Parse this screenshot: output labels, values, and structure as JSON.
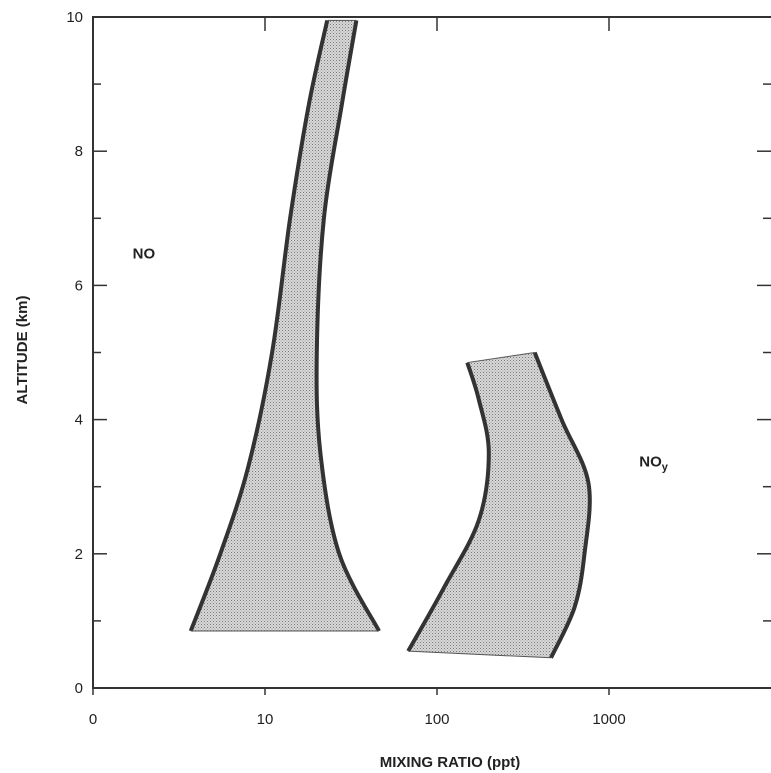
{
  "chart_data": {
    "type": "area",
    "xlabel": "MIXING RATIO (ppt)",
    "ylabel": "ALTITUDE (km)",
    "x_scale": "log",
    "x_ticks": [
      {
        "value": 1,
        "label": "0"
      },
      {
        "value": 10,
        "label": "10"
      },
      {
        "value": 100,
        "label": "100"
      },
      {
        "value": 1000,
        "label": "1000"
      }
    ],
    "y_ticks": [
      0,
      2,
      4,
      6,
      8,
      10
    ],
    "xlim": [
      1,
      10000
    ],
    "ylim": [
      0,
      10
    ],
    "grid": false,
    "fill_color": "#c8c8c8",
    "line_color": "#333333",
    "series": [
      {
        "name": "NO",
        "label": "NO",
        "label_position": {
          "x": 1.7,
          "y": 6.4
        },
        "left_boundary": [
          {
            "x": 3.7,
            "y": 0.85
          },
          {
            "x": 5.5,
            "y": 2.0
          },
          {
            "x": 8.0,
            "y": 3.3
          },
          {
            "x": 11.0,
            "y": 5.0
          },
          {
            "x": 14.0,
            "y": 7.0
          },
          {
            "x": 18.0,
            "y": 8.7
          },
          {
            "x": 23.0,
            "y": 9.95
          }
        ],
        "right_boundary": [
          {
            "x": 34.0,
            "y": 9.95
          },
          {
            "x": 28.0,
            "y": 8.7
          },
          {
            "x": 22.0,
            "y": 7.0
          },
          {
            "x": 20.0,
            "y": 5.0
          },
          {
            "x": 21.0,
            "y": 3.5
          },
          {
            "x": 27.0,
            "y": 2.0
          },
          {
            "x": 46.0,
            "y": 0.85
          }
        ]
      },
      {
        "name": "NOy",
        "label_main": "NO",
        "label_sub": "y",
        "label_position": {
          "x": 1500,
          "y": 3.3
        },
        "left_boundary": [
          {
            "x": 68,
            "y": 0.55
          },
          {
            "x": 110,
            "y": 1.5
          },
          {
            "x": 175,
            "y": 2.5
          },
          {
            "x": 200,
            "y": 3.5
          },
          {
            "x": 175,
            "y": 4.3
          },
          {
            "x": 150,
            "y": 4.85
          }
        ],
        "right_boundary": [
          {
            "x": 370,
            "y": 5.0
          },
          {
            "x": 530,
            "y": 4.0
          },
          {
            "x": 760,
            "y": 3.05
          },
          {
            "x": 720,
            "y": 2.0
          },
          {
            "x": 630,
            "y": 1.2
          },
          {
            "x": 460,
            "y": 0.45
          }
        ]
      }
    ]
  }
}
